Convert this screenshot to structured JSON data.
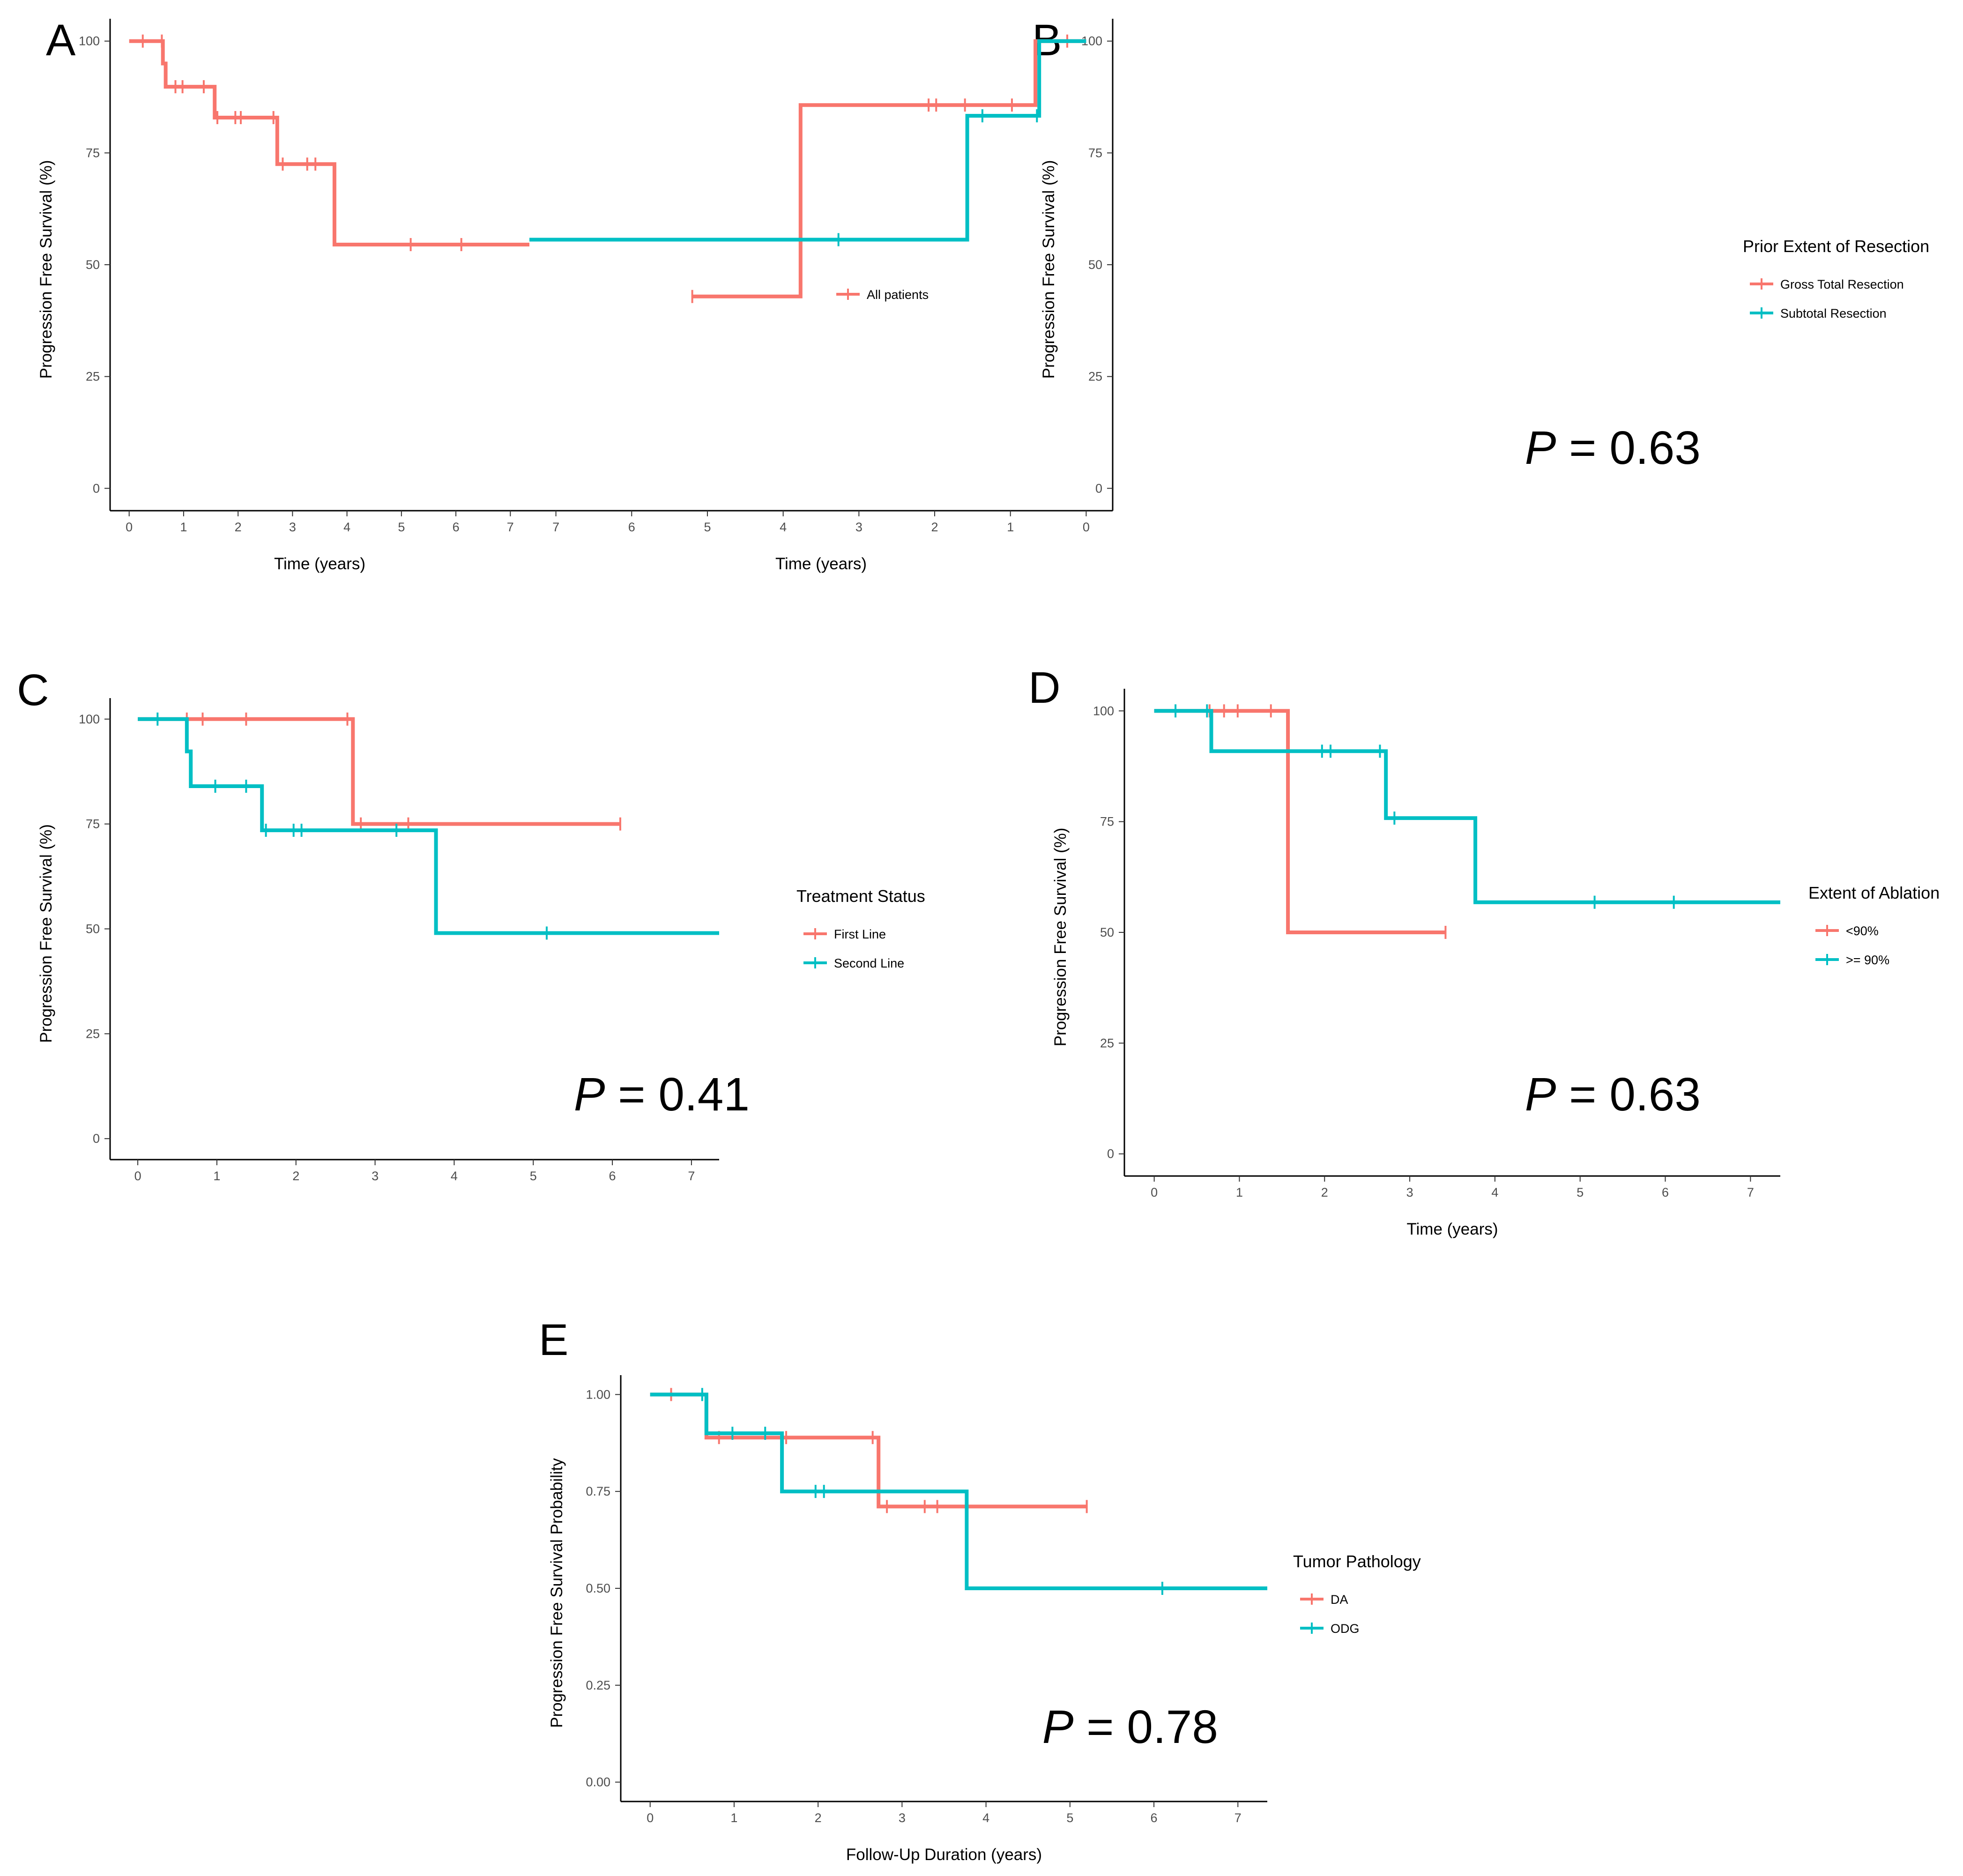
{
  "colors": {
    "series1": "#F8766D",
    "series2": "#00BFC4",
    "axis": "#000000",
    "tick_text": "#4d4d4d"
  },
  "chart_data": [
    {
      "panel": "A",
      "type": "line",
      "title": "",
      "xlabel": "Time (years)",
      "ylabel": "Progression Free Survival (%)",
      "xlim": [
        -0.35,
        7.35
      ],
      "ylim": [
        -5,
        105
      ],
      "xticks": [
        0,
        1,
        2,
        3,
        4,
        5,
        6,
        7
      ],
      "yticks": [
        0,
        25,
        50,
        75,
        100
      ],
      "ytick_labels": [
        "0",
        "25",
        "50",
        "75",
        "100"
      ],
      "legend_title": "",
      "pvalue": "",
      "series": [
        {
          "name": "All patients",
          "color_key": "series1",
          "steps": [
            [
              0,
              100
            ],
            [
              0.62,
              100
            ],
            [
              0.62,
              95
            ],
            [
              0.67,
              95
            ],
            [
              0.67,
              89.8
            ],
            [
              1.57,
              89.8
            ],
            [
              1.57,
              82.9
            ],
            [
              2.72,
              82.9
            ],
            [
              2.72,
              72.5
            ],
            [
              3.77,
              72.5
            ],
            [
              3.77,
              54.5
            ],
            [
              7.35,
              54.5
            ]
          ],
          "censors": [
            [
              0.25,
              100
            ],
            [
              0.6,
              100
            ],
            [
              0.85,
              89.8
            ],
            [
              0.98,
              89.8
            ],
            [
              1.37,
              89.8
            ],
            [
              1.62,
              82.9
            ],
            [
              1.95,
              82.9
            ],
            [
              2.05,
              82.9
            ],
            [
              2.65,
              82.9
            ],
            [
              2.82,
              72.5
            ],
            [
              3.27,
              72.5
            ],
            [
              3.42,
              72.5
            ],
            [
              5.17,
              54.5
            ],
            [
              6.1,
              54.5
            ]
          ]
        }
      ]
    },
    {
      "panel": "B",
      "type": "line",
      "title": "",
      "xlabel": "Time (years)",
      "ylabel": "Progression Free Survival (%)",
      "xlim": [
        -0.35,
        7.35
      ],
      "ylim": [
        -5,
        105
      ],
      "xticks": [
        0,
        1,
        2,
        3,
        4,
        5,
        6,
        7
      ],
      "yticks": [
        0,
        25,
        50,
        75,
        100
      ],
      "ytick_labels": [
        "0",
        "25",
        "50",
        "75",
        "100"
      ],
      "legend_title": "Prior Extent of Resection",
      "pvalue": "0.63",
      "series": [
        {
          "name": "Gross Total Resection",
          "color_key": "series1",
          "steps": [
            [
              0,
              100
            ],
            [
              0.67,
              100
            ],
            [
              0.67,
              85.7
            ],
            [
              3.77,
              85.7
            ],
            [
              3.77,
              42.9
            ],
            [
              5.2,
              42.9
            ]
          ],
          "censors": [
            [
              0.25,
              100
            ],
            [
              0.98,
              85.7
            ],
            [
              1.6,
              85.7
            ],
            [
              1.98,
              85.7
            ],
            [
              2.08,
              85.7
            ],
            [
              5.2,
              42.9
            ]
          ]
        },
        {
          "name": "Subtotal Resection",
          "color_key": "series2",
          "steps": [
            [
              0,
              100
            ],
            [
              0.62,
              100
            ],
            [
              0.62,
              83.3
            ],
            [
              1.57,
              83.3
            ],
            [
              1.57,
              55.6
            ],
            [
              7.35,
              55.6
            ]
          ],
          "censors": [
            [
              0.65,
              83.3
            ],
            [
              1.37,
              83.3
            ],
            [
              3.27,
              55.6
            ]
          ]
        }
      ]
    },
    {
      "panel": "C",
      "type": "line",
      "title": "",
      "xlabel": "",
      "ylabel": "Progression Free Survival (%)",
      "xlim": [
        -0.35,
        7.35
      ],
      "ylim": [
        -5,
        105
      ],
      "xticks": [
        0,
        1,
        2,
        3,
        4,
        5,
        6,
        7
      ],
      "yticks": [
        0,
        25,
        50,
        75,
        100
      ],
      "ytick_labels": [
        "0",
        "25",
        "50",
        "75",
        "100"
      ],
      "legend_title": "Treatment Status",
      "pvalue": "0.41",
      "series": [
        {
          "name": "First Line",
          "color_key": "series1",
          "steps": [
            [
              0,
              100
            ],
            [
              2.72,
              100
            ],
            [
              2.72,
              75
            ],
            [
              6.1,
              75
            ]
          ],
          "censors": [
            [
              0.62,
              100
            ],
            [
              0.82,
              100
            ],
            [
              1.37,
              100
            ],
            [
              2.65,
              100
            ],
            [
              2.82,
              75
            ],
            [
              3.42,
              75
            ],
            [
              6.1,
              75
            ]
          ]
        },
        {
          "name": "Second Line",
          "color_key": "series2",
          "steps": [
            [
              0,
              100
            ],
            [
              0.62,
              100
            ],
            [
              0.62,
              92.3
            ],
            [
              0.67,
              92.3
            ],
            [
              0.67,
              84
            ],
            [
              1.57,
              84
            ],
            [
              1.57,
              73.5
            ],
            [
              3.77,
              73.5
            ],
            [
              3.77,
              49
            ],
            [
              7.35,
              49
            ]
          ],
          "censors": [
            [
              0.25,
              100
            ],
            [
              0.98,
              84
            ],
            [
              1.37,
              84
            ],
            [
              1.62,
              73.5
            ],
            [
              1.97,
              73.5
            ],
            [
              2.07,
              73.5
            ],
            [
              3.27,
              73.5
            ],
            [
              5.17,
              49
            ]
          ]
        }
      ]
    },
    {
      "panel": "D",
      "type": "line",
      "title": "",
      "xlabel": "Time (years)",
      "ylabel": "Progression Free Survival (%)",
      "xlim": [
        -0.35,
        7.35
      ],
      "ylim": [
        -5,
        105
      ],
      "xticks": [
        0,
        1,
        2,
        3,
        4,
        5,
        6,
        7
      ],
      "yticks": [
        0,
        25,
        50,
        75,
        100
      ],
      "ytick_labels": [
        "0",
        "25",
        "50",
        "75",
        "100"
      ],
      "legend_title": "Extent of Ablation",
      "pvalue": "0.63",
      "series": [
        {
          "name": "<90%",
          "color_key": "series1",
          "steps": [
            [
              0,
              100
            ],
            [
              1.57,
              100
            ],
            [
              1.57,
              50
            ],
            [
              3.42,
              50
            ]
          ],
          "censors": [
            [
              0.65,
              100
            ],
            [
              0.82,
              100
            ],
            [
              0.98,
              100
            ],
            [
              1.37,
              100
            ],
            [
              3.42,
              50
            ]
          ]
        },
        {
          "name": ">= 90%",
          "color_key": "series2",
          "steps": [
            [
              0,
              100
            ],
            [
              0.67,
              100
            ],
            [
              0.67,
              90.9
            ],
            [
              2.72,
              90.9
            ],
            [
              2.72,
              75.8
            ],
            [
              3.77,
              75.8
            ],
            [
              3.77,
              56.8
            ],
            [
              7.35,
              56.8
            ]
          ],
          "censors": [
            [
              0.25,
              100
            ],
            [
              0.62,
              100
            ],
            [
              1.97,
              90.9
            ],
            [
              2.07,
              90.9
            ],
            [
              2.65,
              90.9
            ],
            [
              2.82,
              75.8
            ],
            [
              5.17,
              56.8
            ],
            [
              6.1,
              56.8
            ]
          ]
        }
      ]
    },
    {
      "panel": "E",
      "type": "line",
      "title": "",
      "xlabel": "Follow-Up Duration (years)",
      "ylabel": "Progression Free Survival Probability",
      "xlim": [
        -0.35,
        7.35
      ],
      "ylim": [
        -0.05,
        1.05
      ],
      "xticks": [
        0,
        1,
        2,
        3,
        4,
        5,
        6,
        7
      ],
      "yticks": [
        0,
        0.25,
        0.5,
        0.75,
        1
      ],
      "ytick_labels": [
        "0.00",
        "0.25",
        "0.50",
        "0.75",
        "1.00"
      ],
      "legend_title": "Tumor Pathology",
      "pvalue": "0.78",
      "series": [
        {
          "name": "DA",
          "color_key": "series1",
          "steps": [
            [
              0,
              1
            ],
            [
              0.67,
              1
            ],
            [
              0.67,
              0.889
            ],
            [
              2.72,
              0.889
            ],
            [
              2.72,
              0.711
            ],
            [
              5.2,
              0.711
            ]
          ],
          "censors": [
            [
              0.25,
              1
            ],
            [
              0.82,
              0.889
            ],
            [
              1.62,
              0.889
            ],
            [
              2.65,
              0.889
            ],
            [
              2.82,
              0.711
            ],
            [
              3.27,
              0.711
            ],
            [
              3.42,
              0.711
            ],
            [
              5.2,
              0.711
            ]
          ]
        },
        {
          "name": "ODG",
          "color_key": "series2",
          "steps": [
            [
              0,
              1
            ],
            [
              0.67,
              1
            ],
            [
              0.67,
              0.9
            ],
            [
              1.57,
              0.9
            ],
            [
              1.57,
              0.75
            ],
            [
              3.77,
              0.75
            ],
            [
              3.77,
              0.5
            ],
            [
              7.35,
              0.5
            ]
          ],
          "censors": [
            [
              0.62,
              1
            ],
            [
              0.98,
              0.9
            ],
            [
              1.37,
              0.9
            ],
            [
              1.97,
              0.75
            ],
            [
              2.07,
              0.75
            ],
            [
              6.1,
              0.5
            ]
          ]
        }
      ]
    }
  ]
}
